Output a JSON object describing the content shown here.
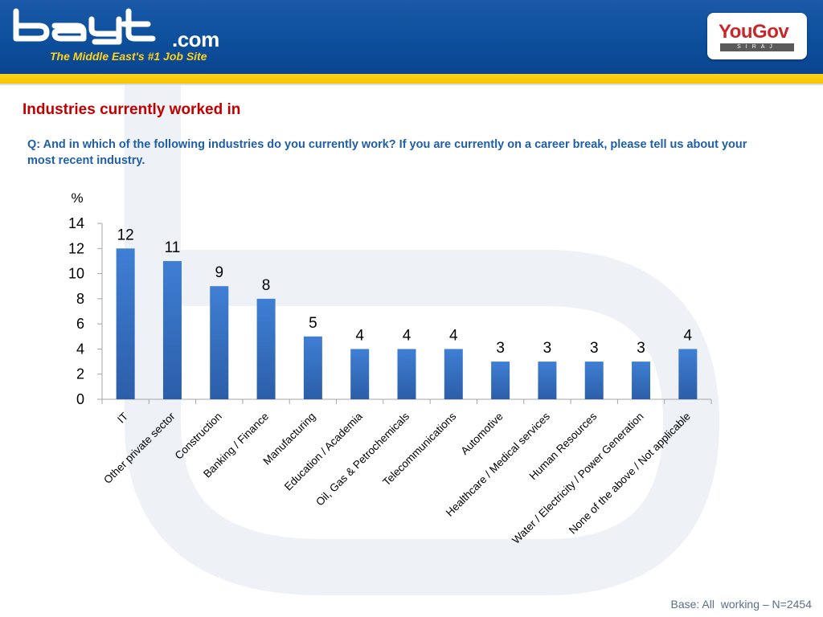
{
  "header": {
    "logo_word": "bayt",
    "logo_suffix": ".com",
    "tagline": "The Middle East's #1 Job Site",
    "partner_name": "YouGov",
    "partner_sub": "SIRAJ"
  },
  "slide": {
    "title": "Industries currently worked in",
    "question": "Q: And in which of the following industries do you currently work? If you are currently on a career break, please tell us about your most recent industry.",
    "footnote": "Base: All  working – N=2454"
  },
  "colors": {
    "header_blue": "#0d4f9c",
    "accent_yellow": "#ffd21a",
    "title_red": "#c00000",
    "question_blue": "#1f5fa8",
    "bar_blue": "#3a72c4"
  },
  "chart_data": {
    "type": "bar",
    "ylabel": "%",
    "ylim": [
      0,
      14
    ],
    "yticks": [
      0,
      2,
      4,
      6,
      8,
      10,
      12,
      14
    ],
    "categories": [
      "IT",
      "Other private sector",
      "Construction",
      "Banking / Finance",
      "Manufacturing",
      "Education / Academia",
      "Oil, Gas & Petrochemicals",
      "Telecommunications",
      "Automotive",
      "Healthcare / Medical services",
      "Human Resources",
      "Water / Electricity / Power Generation",
      "None of the above / Not applicable"
    ],
    "values": [
      12,
      11,
      9,
      8,
      5,
      4,
      4,
      4,
      3,
      3,
      3,
      3,
      4
    ],
    "grid": false,
    "legend": "none"
  }
}
